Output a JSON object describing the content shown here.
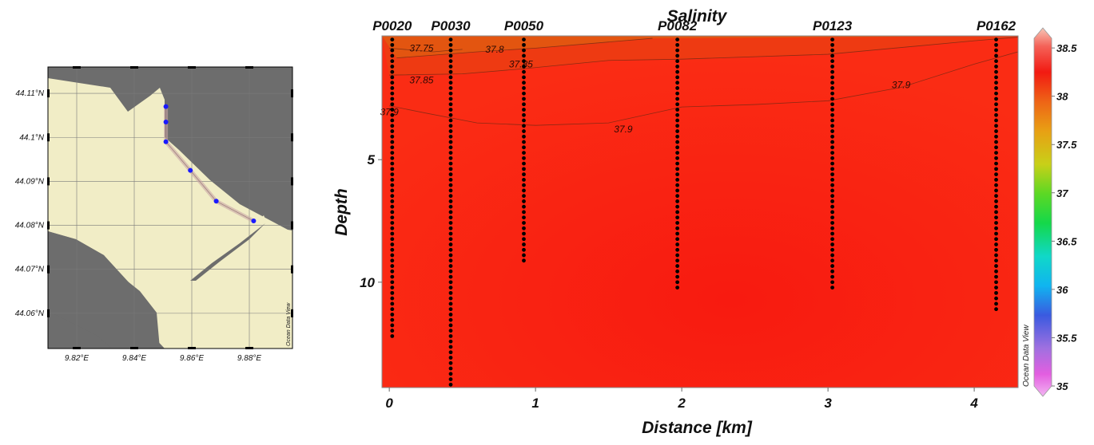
{
  "chart_data": [
    {
      "type": "map",
      "lat_ticks": [
        "44.11°N",
        "44.1°N",
        "44.09°N",
        "44.08°N",
        "44.07°N",
        "44.06°N"
      ],
      "lon_ticks": [
        "9.82°E",
        "9.84°E",
        "9.86°E",
        "9.88°E"
      ],
      "lat_range": [
        44.052,
        44.116
      ],
      "lon_range": [
        9.81,
        9.895
      ],
      "watermark": "Ocean Data View",
      "stations": [
        {
          "lon": 9.851,
          "lat": 44.107
        },
        {
          "lon": 9.851,
          "lat": 44.1035
        },
        {
          "lon": 9.851,
          "lat": 44.099
        },
        {
          "lon": 9.8595,
          "lat": 44.0925
        },
        {
          "lon": 9.8685,
          "lat": 44.0855
        },
        {
          "lon": 9.8815,
          "lat": 44.081
        }
      ],
      "colors": {
        "land": "#f1edc6",
        "sea": "#6d6d6d",
        "station": "#1a1aff"
      }
    },
    {
      "type": "heatmap",
      "title": "Salinity",
      "xlabel": "Distance [km]",
      "ylabel": "Depth",
      "xlim": [
        -0.05,
        4.3
      ],
      "ylim": [
        14.3,
        -0.05
      ],
      "x_ticks": [
        "0",
        "1",
        "2",
        "3",
        "4"
      ],
      "y_ticks": [
        "5",
        "10"
      ],
      "stations": [
        {
          "name": "P0020",
          "x": 0.02,
          "max_depth": 12.3
        },
        {
          "name": "P0030",
          "x": 0.42,
          "max_depth": 14.2
        },
        {
          "name": "P0050",
          "x": 0.92,
          "max_depth": 9.2
        },
        {
          "name": "P0082",
          "x": 1.97,
          "max_depth": 10.3
        },
        {
          "name": "P0123",
          "x": 3.03,
          "max_depth": 10.3
        },
        {
          "name": "P0162",
          "x": 4.15,
          "max_depth": 11.3
        }
      ],
      "contours": [
        {
          "level": "37.75",
          "points": [
            [
              0.0,
              0.45
            ],
            [
              0.3,
              0.6
            ],
            [
              0.5,
              0.5
            ]
          ]
        },
        {
          "level": "37.8",
          "points": [
            [
              0.05,
              0.85
            ],
            [
              0.6,
              0.6
            ],
            [
              1.0,
              0.45
            ],
            [
              1.5,
              0.2
            ],
            [
              1.8,
              0.05
            ]
          ]
        },
        {
          "level": "37.85",
          "points": [
            [
              0.0,
              1.55
            ],
            [
              0.5,
              1.5
            ],
            [
              0.9,
              1.3
            ],
            [
              1.5,
              0.95
            ],
            [
              2.0,
              0.9
            ],
            [
              3.0,
              0.7
            ],
            [
              4.0,
              0.15
            ],
            [
              4.3,
              0.0
            ]
          ]
        },
        {
          "level": "37.9",
          "points": [
            [
              0.0,
              2.8
            ],
            [
              0.25,
              3.1
            ],
            [
              0.6,
              3.5
            ],
            [
              1.0,
              3.6
            ],
            [
              1.5,
              3.5
            ],
            [
              2.0,
              2.85
            ],
            [
              2.5,
              2.75
            ],
            [
              3.0,
              2.6
            ],
            [
              3.5,
              2.05
            ],
            [
              4.0,
              1.1
            ],
            [
              4.3,
              0.6
            ]
          ]
        }
      ],
      "contour_labels": [
        {
          "text": "37.75",
          "x": 0.22,
          "y": 0.45
        },
        {
          "text": "37.8",
          "x": 0.72,
          "y": 0.5
        },
        {
          "text": "37.85",
          "x": 0.22,
          "y": 1.75
        },
        {
          "text": "37.85",
          "x": 0.9,
          "y": 1.1
        },
        {
          "text": "37.9",
          "x": 0.0,
          "y": 3.05
        },
        {
          "text": "37.9",
          "x": 1.6,
          "y": 3.75
        },
        {
          "text": "37.9",
          "x": 3.5,
          "y": 1.95
        }
      ],
      "colorbar": {
        "ticks": [
          "38.5",
          "38",
          "37.5",
          "37",
          "36.5",
          "36",
          "35.5",
          "35"
        ],
        "range": [
          35,
          38.6
        ],
        "label": "Ocean Data View"
      },
      "colors": {
        "field": "#fa2a12",
        "surface": "#e05a10",
        "contour": "#6a2a14",
        "dots": "#000000"
      }
    }
  ]
}
